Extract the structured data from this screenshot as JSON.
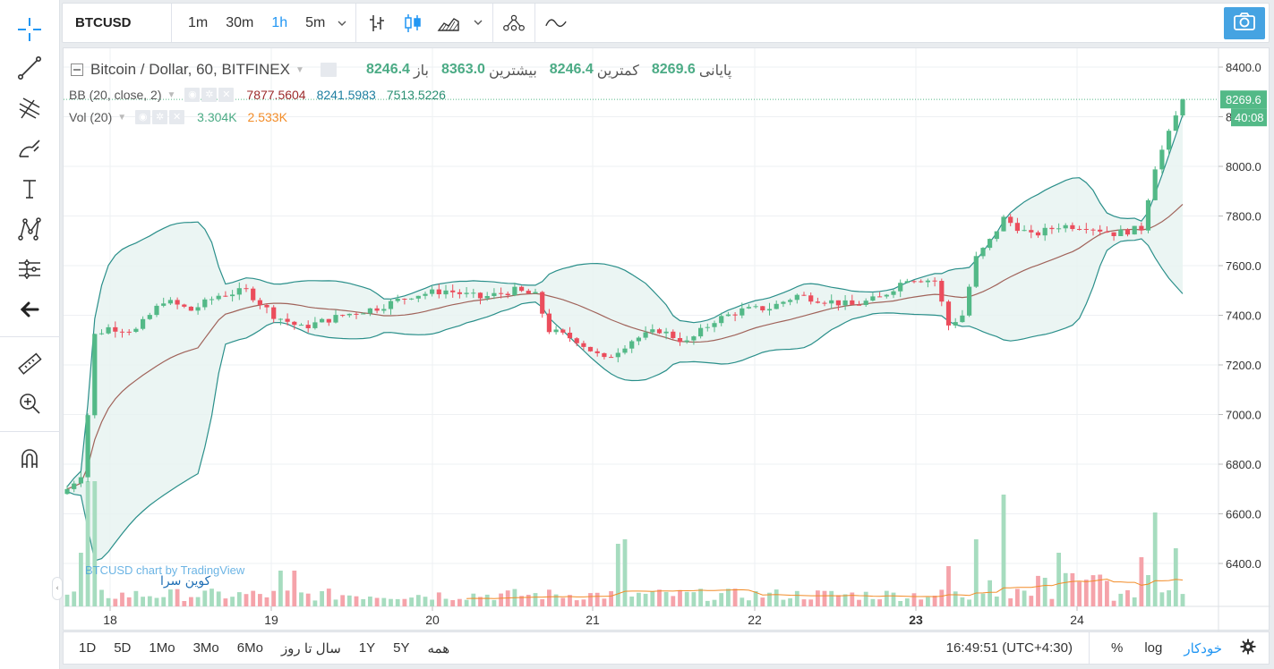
{
  "topbar": {
    "symbol": "BTCUSD",
    "intervals": [
      "1m",
      "30m",
      "1h",
      "5m"
    ],
    "active_interval": "1h"
  },
  "legend": {
    "title": "Bitcoin / Dollar, 60, BITFINEX",
    "ohlc": [
      {
        "label": "باز",
        "value": "8246.4"
      },
      {
        "label": "بیشترین",
        "value": "8363.0"
      },
      {
        "label": "کمترین",
        "value": "8246.4"
      },
      {
        "label": "پایانی",
        "value": "8269.6"
      }
    ],
    "bb": {
      "name": "BB (20, close, 2)",
      "v1": "7877.5604",
      "v2": "8241.5983",
      "v3": "7513.5226",
      "c1": "#9c2b2b",
      "c2": "#1e7fa0",
      "c3": "#2a8f72"
    },
    "vol": {
      "name": "Vol (20)",
      "v1": "3.304K",
      "v2": "2.533K",
      "c1": "#4bab85",
      "c2": "#f28c28"
    }
  },
  "price_axis": {
    "ticks": [
      "8400.0",
      "8200.0",
      "8000.0",
      "7800.0",
      "7600.0",
      "7400.0",
      "7200.0",
      "7000.0",
      "6800.0",
      "6600.0",
      "6400.0"
    ],
    "last_price": "8269.6",
    "countdown": "40:08"
  },
  "time_axis": {
    "ticks": [
      "18",
      "19",
      "20",
      "21",
      "22",
      "23",
      "24"
    ]
  },
  "watermark": {
    "line1": "BTCUSD chart by TradingView",
    "line2": "کوین سرا"
  },
  "bottombar": {
    "ranges": [
      "1D",
      "5D",
      "1Mo",
      "3Mo",
      "6Mo",
      "سال تا روز",
      "1Y",
      "5Y",
      "همه"
    ],
    "time": "16:49:51 (UTC+4:30)",
    "percent": "%",
    "log": "log",
    "auto": "خودکار"
  },
  "colors": {
    "up": "#53b987",
    "down": "#eb4d5c",
    "bb_fill": "#e6f2f0",
    "bb_band": "#2a8f8a",
    "bb_mid": "#a0635a",
    "vol_ma": "#f28c28"
  },
  "chart_data": {
    "type": "candlestick",
    "y_range": [
      6200,
      8450
    ],
    "x_ticks": [
      "18",
      "19",
      "20",
      "21",
      "22",
      "23",
      "24"
    ],
    "approx_close_path": [
      [
        0,
        6700
      ],
      [
        2,
        6760
      ],
      [
        3,
        7000
      ],
      [
        4,
        7320
      ],
      [
        6,
        7350
      ],
      [
        10,
        7340
      ],
      [
        14,
        7460
      ],
      [
        18,
        7420
      ],
      [
        22,
        7480
      ],
      [
        26,
        7500
      ],
      [
        30,
        7400
      ],
      [
        34,
        7350
      ],
      [
        40,
        7400
      ],
      [
        45,
        7430
      ],
      [
        50,
        7480
      ],
      [
        55,
        7500
      ],
      [
        60,
        7470
      ],
      [
        65,
        7500
      ],
      [
        68,
        7480
      ],
      [
        70,
        7340
      ],
      [
        74,
        7300
      ],
      [
        78,
        7220
      ],
      [
        82,
        7300
      ],
      [
        86,
        7340
      ],
      [
        90,
        7290
      ],
      [
        94,
        7380
      ],
      [
        98,
        7420
      ],
      [
        102,
        7430
      ],
      [
        106,
        7480
      ],
      [
        110,
        7460
      ],
      [
        114,
        7440
      ],
      [
        118,
        7470
      ],
      [
        122,
        7550
      ],
      [
        126,
        7540
      ],
      [
        128,
        7360
      ],
      [
        130,
        7400
      ],
      [
        132,
        7630
      ],
      [
        134,
        7700
      ],
      [
        136,
        7790
      ],
      [
        140,
        7720
      ],
      [
        144,
        7760
      ],
      [
        148,
        7760
      ],
      [
        152,
        7730
      ],
      [
        156,
        7750
      ],
      [
        158,
        8000
      ],
      [
        160,
        8130
      ],
      [
        162,
        8270
      ]
    ],
    "last_close": 8269.6
  }
}
